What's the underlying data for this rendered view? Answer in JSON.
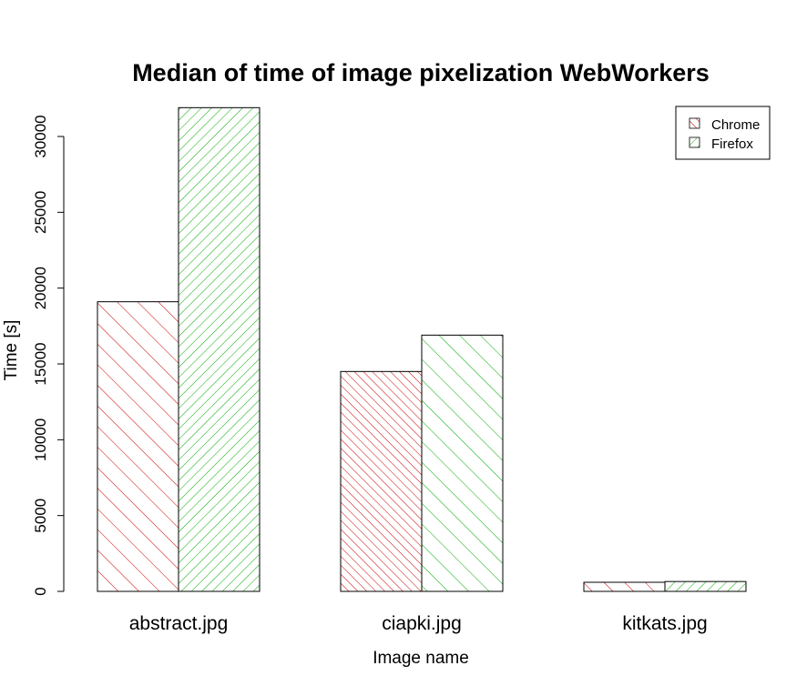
{
  "chart_data": {
    "type": "bar",
    "title": "Median of time of image pixelization WebWorkers",
    "xlabel": "Image name",
    "ylabel": "Time [s]",
    "categories": [
      "abstract.jpg",
      "ciapki.jpg",
      "kitkats.jpg"
    ],
    "series": [
      {
        "name": "Chrome",
        "values": [
          19100,
          14500,
          600
        ],
        "color": "#cc0000",
        "pattern": "diagonal-45-sparse"
      },
      {
        "name": "Firefox",
        "values": [
          31900,
          16900,
          650
        ],
        "color": "#00aa00",
        "pattern": "diagonal-135-dense"
      }
    ],
    "yticks": [
      0,
      5000,
      10000,
      15000,
      20000,
      25000,
      30000
    ],
    "ylim": [
      0,
      32000
    ],
    "grid": false,
    "legend_position": "top-right"
  }
}
